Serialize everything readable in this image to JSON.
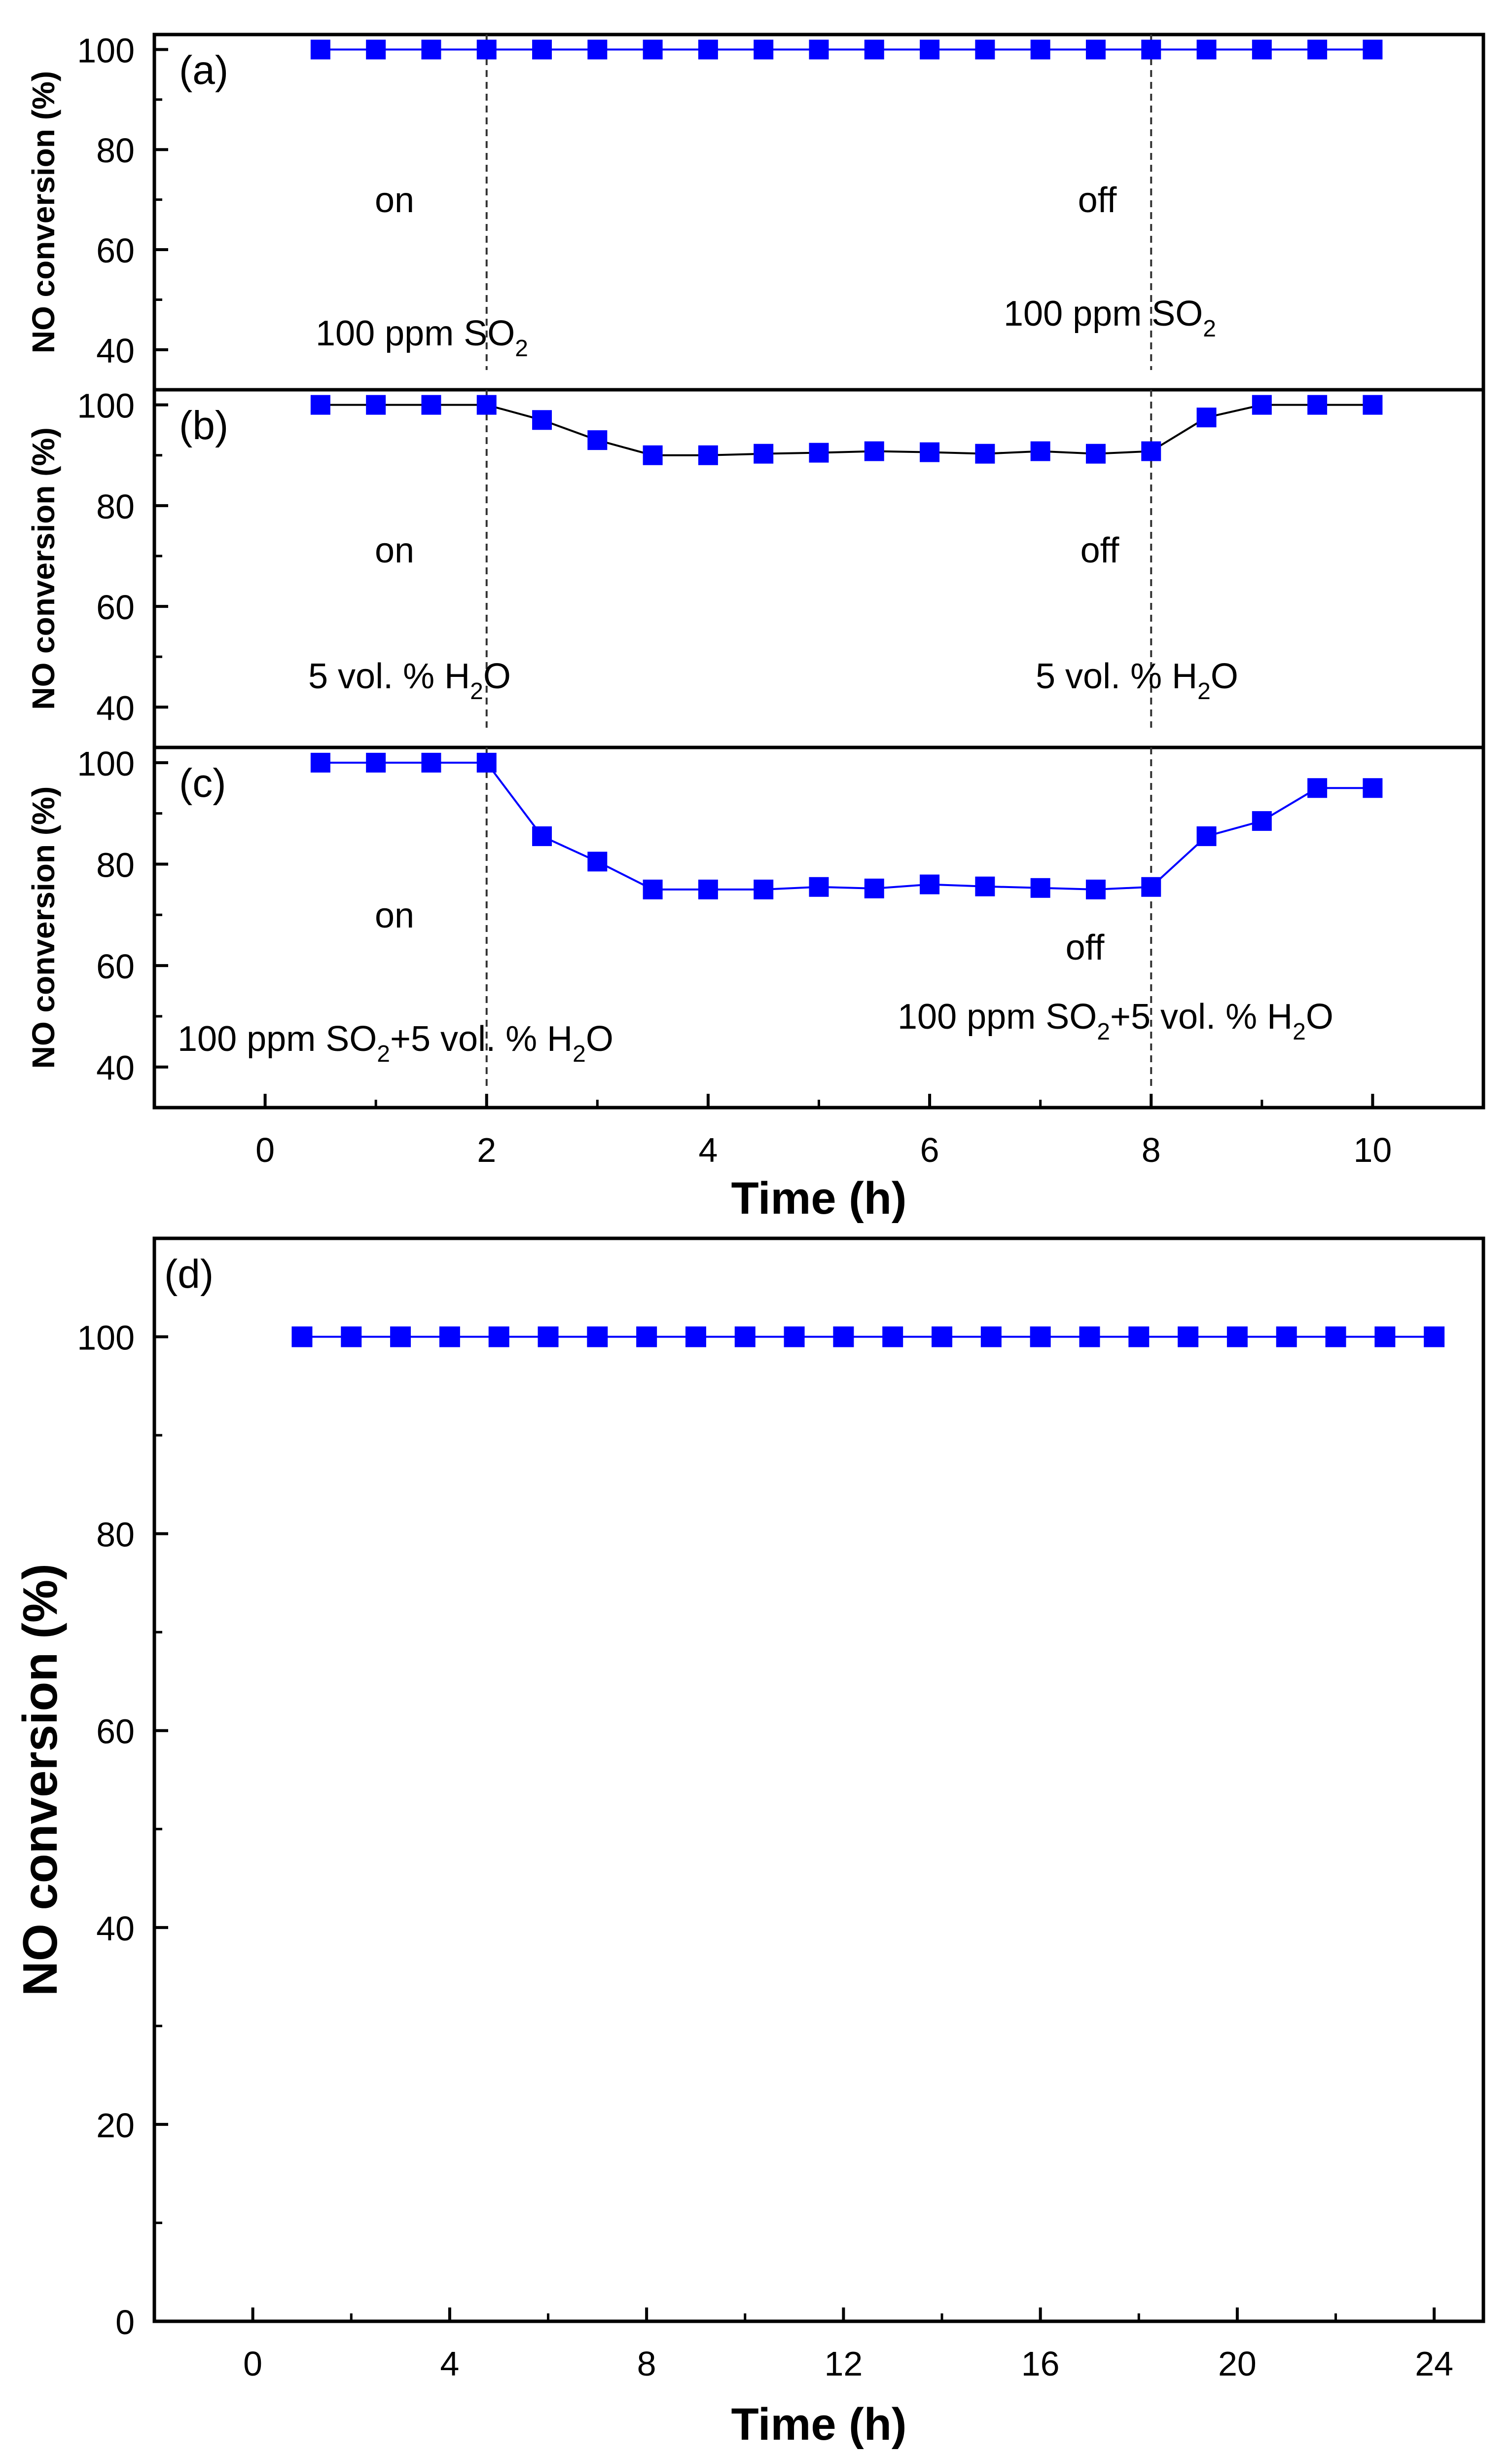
{
  "colors": {
    "marker": "#0000ff",
    "axis": "#000000",
    "background": "#ffffff"
  },
  "chart_data": [
    {
      "id": "a",
      "type": "line",
      "panel_label": "(a)",
      "ylabel": "NO conversion (%)",
      "ylim": [
        32,
        103
      ],
      "yticks": [
        40,
        60,
        80,
        100
      ],
      "xlim": [
        -1,
        11
      ],
      "series": [
        {
          "name": "NO conversion",
          "line_color": "#0000ff",
          "x": [
            0.5,
            1,
            1.5,
            2,
            2.5,
            3,
            3.5,
            4,
            4.5,
            5,
            5.5,
            6,
            6.5,
            7,
            7.5,
            8,
            8.5,
            9,
            9.5,
            10
          ],
          "y": [
            100,
            100,
            100,
            100,
            100,
            100,
            100,
            100,
            100,
            100,
            100,
            100,
            100,
            100,
            100,
            100,
            100,
            100,
            100,
            100
          ]
        }
      ],
      "events": [
        {
          "x": 2,
          "state": "on",
          "gas_main": "100 ppm SO",
          "gas_sub": "2",
          "gas_tail": ""
        },
        {
          "x": 8,
          "state": "off",
          "gas_main": "100 ppm SO",
          "gas_sub": "2",
          "gas_tail": ""
        }
      ]
    },
    {
      "id": "b",
      "type": "line",
      "panel_label": "(b)",
      "ylabel": "NO conversion (%)",
      "ylim": [
        32,
        103
      ],
      "yticks": [
        40,
        60,
        80,
        100
      ],
      "xlim": [
        -1,
        11
      ],
      "series": [
        {
          "name": "NO conversion",
          "line_color": "#000000",
          "x": [
            0.5,
            1,
            1.5,
            2,
            2.5,
            3,
            3.5,
            4,
            4.5,
            5,
            5.5,
            6,
            6.5,
            7,
            7.5,
            8,
            8.5,
            9,
            9.5,
            10
          ],
          "y": [
            100,
            100,
            100,
            100,
            97,
            93,
            90,
            90,
            90.3,
            90.5,
            90.8,
            90.6,
            90.3,
            90.8,
            90.3,
            90.8,
            97.5,
            100,
            100,
            100
          ]
        }
      ],
      "events": [
        {
          "x": 2,
          "state": "on",
          "gas_main": "5 vol. % H",
          "gas_sub": "2",
          "gas_tail": "O"
        },
        {
          "x": 8,
          "state": "off",
          "gas_main": "5 vol. % H",
          "gas_sub": "2",
          "gas_tail": "O"
        }
      ]
    },
    {
      "id": "c",
      "type": "line",
      "panel_label": "(c)",
      "ylabel": "NO conversion (%)",
      "ylim": [
        32,
        103
      ],
      "yticks": [
        40,
        60,
        80,
        100
      ],
      "xlim": [
        -1,
        11
      ],
      "xticks": [
        0,
        2,
        4,
        6,
        8,
        10
      ],
      "xlabel": "Time (h)",
      "series": [
        {
          "name": "NO conversion",
          "line_color": "#0000ff",
          "x": [
            0.5,
            1,
            1.5,
            2,
            2.5,
            3,
            3.5,
            4,
            4.5,
            5,
            5.5,
            6,
            6.5,
            7,
            7.5,
            8,
            8.5,
            9,
            9.5,
            10
          ],
          "y": [
            100,
            100,
            100,
            100,
            85.5,
            80.5,
            75,
            75,
            75,
            75.5,
            75.2,
            76,
            75.6,
            75.3,
            75,
            75.5,
            85.5,
            88.5,
            95,
            95
          ]
        }
      ],
      "events": [
        {
          "x": 2,
          "state": "on",
          "gas_main": "100 ppm SO",
          "gas_sub": "2",
          "gas_tail": "+5 vol. % H",
          "gas_sub2": "2",
          "gas_tail2": "O"
        },
        {
          "x": 8,
          "state": "off",
          "gas_main": "100 ppm SO",
          "gas_sub": "2",
          "gas_tail": "+5 vol. % H",
          "gas_sub2": "2",
          "gas_tail2": "O"
        }
      ]
    },
    {
      "id": "d",
      "type": "line",
      "panel_label": "(d)",
      "ylabel": "NO conversion (%)",
      "ylim": [
        0,
        110
      ],
      "yticks": [
        0,
        20,
        40,
        60,
        80,
        100
      ],
      "xlim": [
        -2,
        25
      ],
      "xticks": [
        0,
        4,
        8,
        12,
        16,
        20,
        24
      ],
      "xlabel": "Time (h)",
      "series": [
        {
          "name": "NO conversion",
          "line_color": "#0000ff",
          "x": [
            1,
            2,
            3,
            4,
            5,
            6,
            7,
            8,
            9,
            10,
            11,
            12,
            13,
            14,
            15,
            16,
            17,
            18,
            19,
            20,
            21,
            22,
            23,
            24
          ],
          "y": [
            100,
            100,
            100,
            100,
            100,
            100,
            100,
            100,
            100,
            100,
            100,
            100,
            100,
            100,
            100,
            100,
            100,
            100,
            100,
            100,
            100,
            100,
            100,
            100
          ]
        }
      ],
      "events": []
    }
  ]
}
